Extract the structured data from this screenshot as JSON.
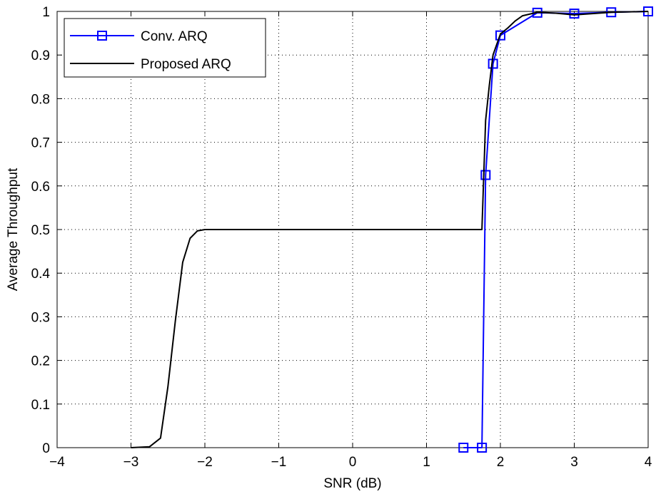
{
  "chart_data": {
    "type": "line",
    "title": "",
    "xlabel": "SNR (dB)",
    "ylabel": "Average Throughput",
    "xlim": [
      -4,
      4
    ],
    "ylim": [
      0,
      1
    ],
    "x_ticks": [
      "−4",
      "−3",
      "−2",
      "−1",
      "0",
      "1",
      "2",
      "3",
      "4"
    ],
    "y_ticks": [
      "0",
      "0.1",
      "0.2",
      "0.3",
      "0.4",
      "0.5",
      "0.6",
      "0.7",
      "0.8",
      "0.9",
      "1"
    ],
    "grid": true,
    "legend_position": "top-left",
    "series": [
      {
        "name": "Conv. ARQ",
        "color": "#0000ff",
        "marker": "square",
        "x": [
          1.5,
          1.75,
          1.8,
          1.9,
          2.0,
          2.5,
          3.0,
          3.5,
          4.0
        ],
        "y": [
          0.0,
          0.0,
          0.625,
          0.88,
          0.945,
          0.997,
          0.995,
          0.998,
          1.0
        ]
      },
      {
        "name": "Proposed ARQ",
        "color": "#000000",
        "marker": "none",
        "x": [
          -3.0,
          -2.75,
          -2.6,
          -2.5,
          -2.4,
          -2.3,
          -2.2,
          -2.1,
          -2.0,
          -1.5,
          -1.0,
          -0.5,
          0.0,
          0.5,
          1.0,
          1.5,
          1.75,
          1.8,
          1.85,
          1.9,
          2.0,
          2.1,
          2.2,
          2.3,
          2.5,
          2.75,
          3.0,
          3.5,
          4.0
        ],
        "y": [
          0.0,
          0.002,
          0.022,
          0.14,
          0.29,
          0.425,
          0.48,
          0.497,
          0.5,
          0.5,
          0.5,
          0.5,
          0.5,
          0.5,
          0.5,
          0.5,
          0.5,
          0.75,
          0.83,
          0.9,
          0.948,
          0.962,
          0.978,
          0.99,
          0.998,
          0.996,
          0.992,
          0.998,
          1.0
        ]
      }
    ]
  }
}
